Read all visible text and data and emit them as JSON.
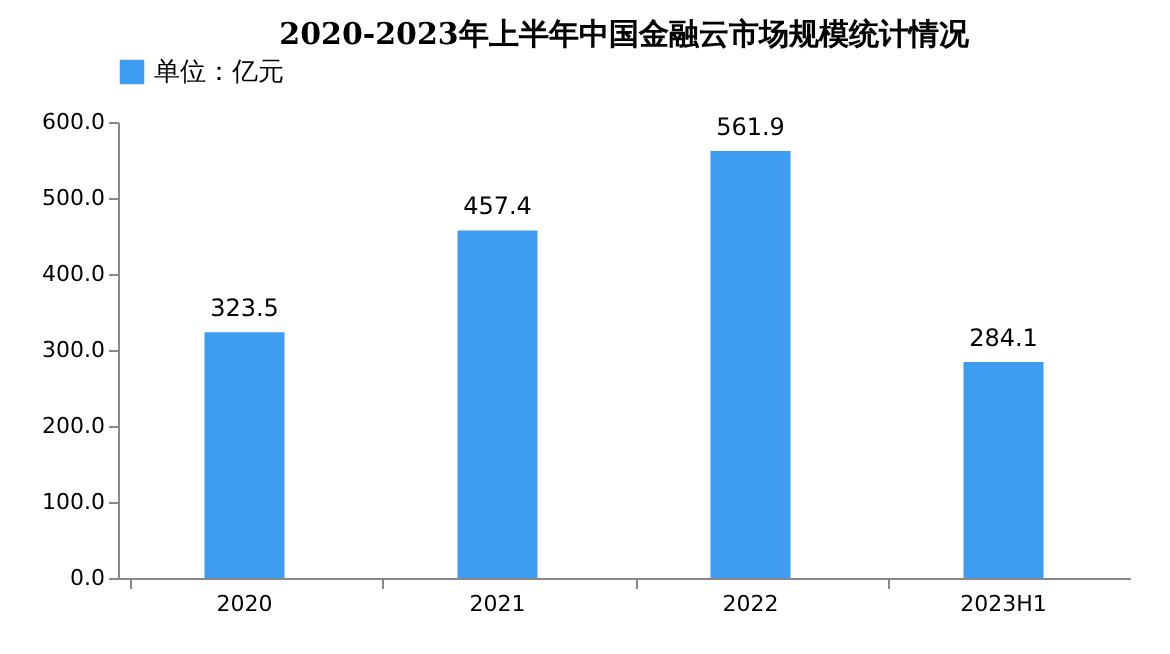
{
  "chart_data": {
    "type": "bar",
    "title": "2020-2023年上半年中国金融云市场规模统计情况",
    "categories": [
      "2020",
      "2021",
      "2022",
      "2023H1"
    ],
    "series": [
      {
        "name": "单位：亿元",
        "color": "#3d9bf0",
        "values": [
          323.5,
          457.4,
          561.9,
          284.1
        ]
      }
    ],
    "ylim": [
      0,
      600
    ],
    "yticks": [
      {
        "value": 0,
        "label": "0.0"
      },
      {
        "value": 100,
        "label": "100.0"
      },
      {
        "value": 200,
        "label": "200.0"
      },
      {
        "value": 300,
        "label": "300.0"
      },
      {
        "value": 400,
        "label": "400.0"
      },
      {
        "value": 500,
        "label": "500.0"
      },
      {
        "value": 600,
        "label": "600.0"
      }
    ],
    "data_labels": true,
    "grid": false,
    "legend": "top"
  }
}
